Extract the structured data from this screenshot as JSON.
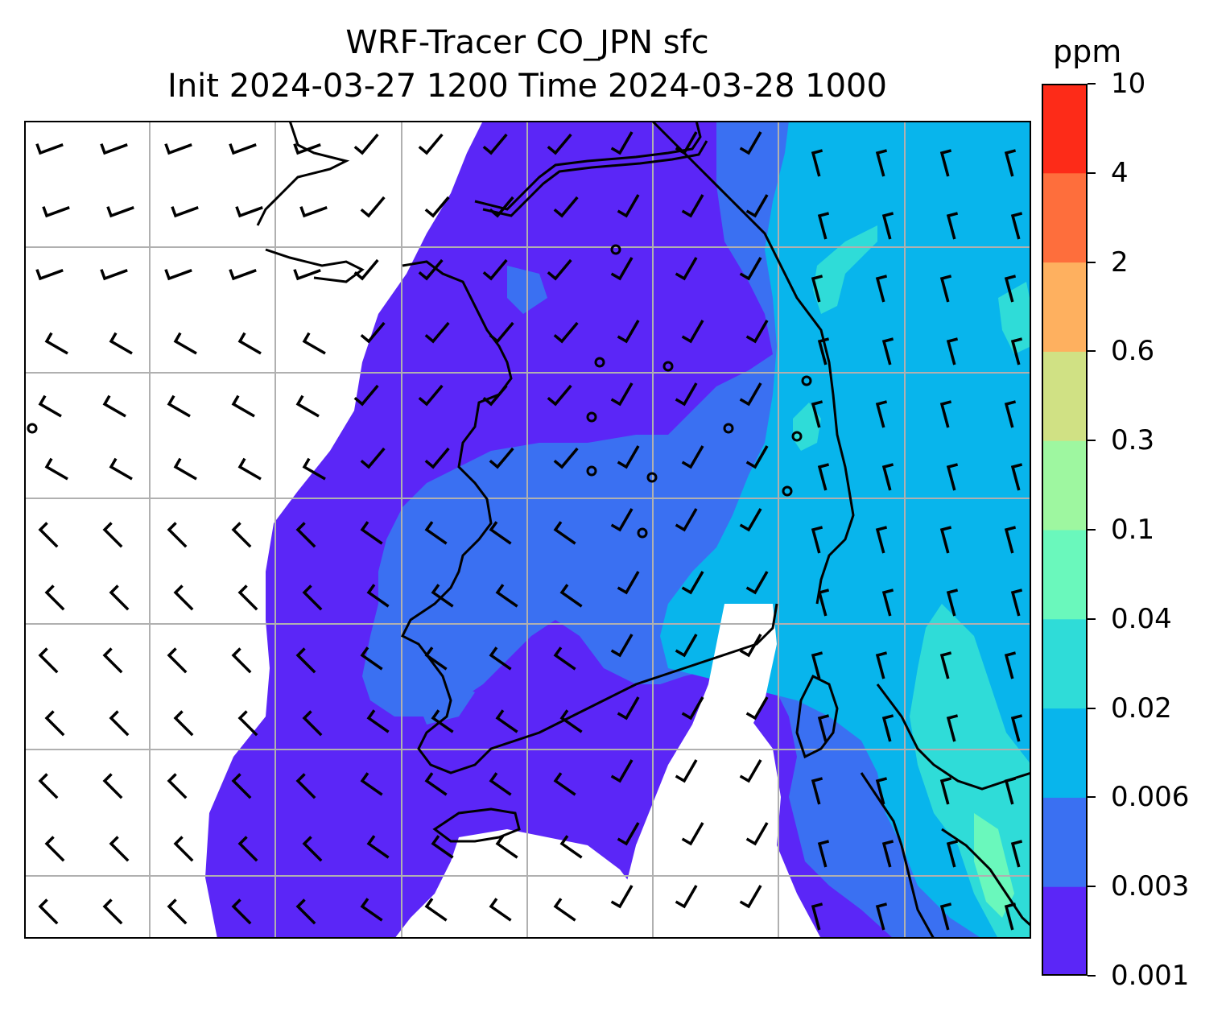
{
  "title": {
    "line1": "WRF-Tracer CO_JPN sfc",
    "line2": "Init 2024-03-27 1200 Time 2024-03-28 1000"
  },
  "colorbar": {
    "unit": "ppm",
    "levels": [
      "0.001",
      "0.003",
      "0.006",
      "0.02",
      "0.04",
      "0.1",
      "0.3",
      "0.6",
      "2",
      "4",
      "10"
    ],
    "colors": [
      "#5b26f7",
      "#3a70f2",
      "#08b5ec",
      "#2fdcd8",
      "#6af8bc",
      "#9ef7a0",
      "#d0e184",
      "#feb05f",
      "#fe6e3c",
      "#fd2b18"
    ]
  },
  "map": {
    "gridlines": true,
    "features": [
      "coastlines",
      "wind-barbs",
      "tracer-concentration-contours"
    ]
  },
  "colors": {
    "low": "#5b26f7",
    "mid_low": "#3a70f2",
    "mid": "#08b5ec",
    "mid_high": "#2fdcd8",
    "high": "#6af8bc",
    "grid": "#b0b0b0"
  }
}
